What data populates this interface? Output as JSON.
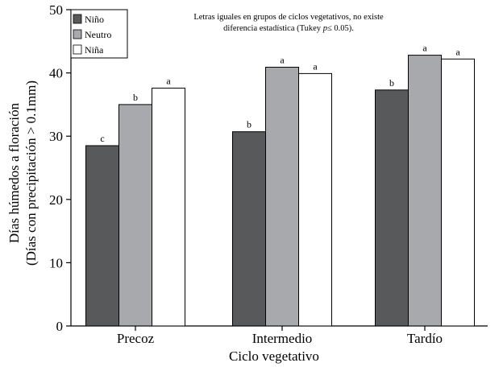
{
  "chart_data": {
    "type": "bar",
    "categories": [
      "Precoz",
      "Intermedio",
      "Tardío"
    ],
    "series": [
      {
        "name": "Niño",
        "color": "#58595b",
        "values": [
          28.5,
          30.7,
          37.3
        ],
        "labels": [
          "c",
          "b",
          "b"
        ]
      },
      {
        "name": "Neutro",
        "color": "#a7a9ac",
        "values": [
          35.0,
          40.9,
          42.8
        ],
        "labels": [
          "b",
          "a",
          "a"
        ]
      },
      {
        "name": "Niña",
        "color": "#ffffff",
        "values": [
          37.6,
          39.9,
          42.2
        ],
        "labels": [
          "a",
          "a",
          "a"
        ]
      }
    ],
    "xlabel": "Ciclo vegetativo",
    "ylabel_line1": "Días húmedos a floración",
    "ylabel_line2": "(Días con precipitación > 0.1mm)",
    "ylim": [
      0,
      50
    ],
    "yticks": [
      0,
      10,
      20,
      30,
      40,
      50
    ],
    "annotation_line1": "Letras iguales en grupos de ciclos vegetativos, no existe",
    "annotation_line2_prefix": "diferencia estadística (Tukey ",
    "annotation_line2_italic": "p",
    "annotation_line2_suffix": "≤ 0.05).",
    "legend_position": "top-left"
  }
}
